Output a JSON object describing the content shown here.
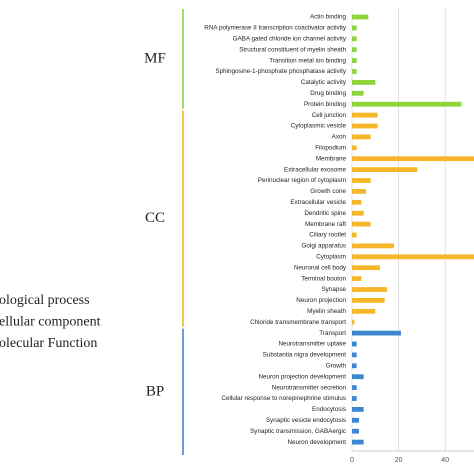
{
  "chart_data": {
    "type": "bar",
    "orientation": "horizontal",
    "xlim": [
      0,
      53.5
    ],
    "xticks": [
      0,
      20,
      40
    ],
    "grid": true,
    "legend_text": [
      "ological process",
      "ellular component",
      "olecular Function"
    ],
    "groups": [
      {
        "name": "MF",
        "color": "#8ed53c",
        "categories": [
          "Actin binding",
          "RNA polymerase II transcription coactivator activity",
          "GABA gated chloride ion channel activity",
          "Structural constituent of myelin sheath",
          "Transition metal ion binding",
          "Sphingosine-1-phosphate phosphatase activity",
          "Catalytic activity",
          "Drug binding",
          "Protein binding"
        ],
        "values": [
          7,
          2,
          2,
          2,
          2,
          2,
          10,
          5,
          47
        ]
      },
      {
        "name": "CC",
        "color": "#f5b62a",
        "categories": [
          "Cell junction",
          "Cytoplasmic vesicle",
          "Axon",
          "Filopodium",
          "Membrane",
          "Extracellular exosome",
          "Perinuclear region of cytoplasm",
          "Growth cone",
          "Extracellular vesicle",
          "Dendritic spine",
          "Membrane raft",
          "Ciliary rootlet",
          "Golgi apparatus",
          "Cytoplasm",
          "Neuronal cell body",
          "Terminal bouton",
          "Synapse",
          "Neuron projection",
          "Myelin sheath",
          "Chloride transmembrane transport"
        ],
        "values": [
          11,
          11,
          8,
          2,
          56,
          28,
          8,
          6,
          4,
          5,
          8,
          2,
          18,
          56,
          12,
          4,
          15,
          14,
          10,
          1
        ]
      },
      {
        "name": "BP",
        "color": "#3f86d0",
        "categories": [
          "Transport",
          "Neurotransmitter uptake",
          "Substantia nigra development",
          "Growth",
          "Neuron projection development",
          "Neurotransmitter secretion",
          "Cellular response to norepinephrine stimulus",
          "Endocytosis",
          "Synaptic vesicle endocytosis",
          "Synaptic transmission, GABAergic",
          "Neuron development"
        ],
        "values": [
          21,
          2,
          2,
          2,
          5,
          2,
          2,
          5,
          3,
          3,
          5
        ]
      }
    ]
  }
}
